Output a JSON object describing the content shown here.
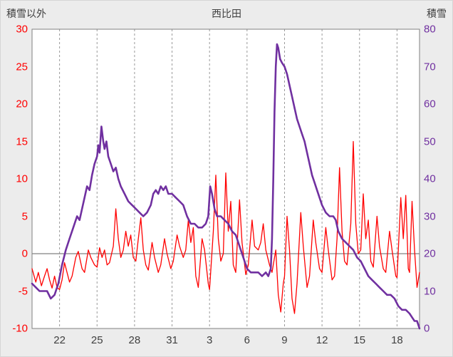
{
  "header": {
    "left_axis_title": "積雪以外",
    "title": "西比田",
    "right_axis_title": "積雪"
  },
  "colors": {
    "red": "#FF0000",
    "purple": "#7030A0",
    "grid": "#999999",
    "zero_line": "#808080",
    "plot_border": "#808080",
    "text": "#404040",
    "background": "#ECECEC",
    "plot_background": "#FFFFFF"
  },
  "chart_data": {
    "type": "line",
    "title": "西比田",
    "x_domain": [
      -1.2,
      29.8
    ],
    "x_ticks": [
      {
        "t": 1,
        "label": "22"
      },
      {
        "t": 4,
        "label": "25"
      },
      {
        "t": 7,
        "label": "28"
      },
      {
        "t": 10,
        "label": "31"
      },
      {
        "t": 13,
        "label": "3"
      },
      {
        "t": 16,
        "label": "6"
      },
      {
        "t": 19,
        "label": "9"
      },
      {
        "t": 22,
        "label": "12"
      },
      {
        "t": 25,
        "label": "15"
      },
      {
        "t": 28,
        "label": "18"
      }
    ],
    "left_axis": {
      "label": "積雪以外",
      "min": -10,
      "max": 30,
      "ticks": [
        30,
        25,
        20,
        15,
        10,
        5,
        0,
        -5,
        -10
      ],
      "color": "#FF0000"
    },
    "right_axis": {
      "label": "積雪",
      "min": 0,
      "max": 80,
      "ticks": [
        80,
        70,
        60,
        50,
        40,
        30,
        20,
        10,
        0
      ],
      "color": "#7030A0"
    },
    "grid": "vertical-dashed",
    "legend": "none",
    "series": [
      {
        "name": "積雪以外",
        "axis": "left",
        "color": "#FF0000",
        "width": 1.3,
        "points": [
          [
            -1.2,
            -2.0
          ],
          [
            -0.9,
            -3.8
          ],
          [
            -0.7,
            -2.5
          ],
          [
            -0.45,
            -4.3
          ],
          [
            -0.2,
            -3.0
          ],
          [
            0,
            -2.0
          ],
          [
            0.2,
            -3.5
          ],
          [
            0.4,
            -4.6
          ],
          [
            0.6,
            -3.0
          ],
          [
            0.8,
            -4.5
          ],
          [
            1.0,
            -4.8
          ],
          [
            1.2,
            -3.5
          ],
          [
            1.4,
            -1.2
          ],
          [
            1.6,
            -2.5
          ],
          [
            1.8,
            -3.8
          ],
          [
            2.0,
            -3.0
          ],
          [
            2.3,
            -0.5
          ],
          [
            2.5,
            0.3
          ],
          [
            2.8,
            -2.0
          ],
          [
            3.0,
            -2.5
          ],
          [
            3.3,
            0.5
          ],
          [
            3.5,
            -0.5
          ],
          [
            3.8,
            -1.5
          ],
          [
            4.0,
            -1.8
          ],
          [
            4.2,
            0.8
          ],
          [
            4.4,
            -0.5
          ],
          [
            4.6,
            0.5
          ],
          [
            4.8,
            -1.5
          ],
          [
            5.0,
            -1.2
          ],
          [
            5.3,
            1.0
          ],
          [
            5.5,
            6.0
          ],
          [
            5.7,
            2.0
          ],
          [
            5.9,
            -0.5
          ],
          [
            6.1,
            0.5
          ],
          [
            6.3,
            3.0
          ],
          [
            6.5,
            1.0
          ],
          [
            6.7,
            2.5
          ],
          [
            6.9,
            -0.5
          ],
          [
            7.1,
            -1.0
          ],
          [
            7.3,
            2.0
          ],
          [
            7.5,
            4.8
          ],
          [
            7.7,
            0.5
          ],
          [
            7.9,
            -1.5
          ],
          [
            8.1,
            -2.2
          ],
          [
            8.4,
            1.5
          ],
          [
            8.6,
            -0.5
          ],
          [
            8.9,
            -2.5
          ],
          [
            9.1,
            -1.5
          ],
          [
            9.4,
            2.0
          ],
          [
            9.6,
            0.0
          ],
          [
            9.9,
            -2.0
          ],
          [
            10.1,
            -1.0
          ],
          [
            10.4,
            2.5
          ],
          [
            10.6,
            1.0
          ],
          [
            10.9,
            -0.5
          ],
          [
            11.1,
            0.5
          ],
          [
            11.3,
            4.5
          ],
          [
            11.5,
            1.5
          ],
          [
            11.7,
            3.5
          ],
          [
            11.9,
            -3.0
          ],
          [
            12.1,
            -4.5
          ],
          [
            12.4,
            2.0
          ],
          [
            12.6,
            0.5
          ],
          [
            12.9,
            -4.0
          ],
          [
            13.0,
            -4.8
          ],
          [
            13.3,
            3.0
          ],
          [
            13.5,
            10.5
          ],
          [
            13.7,
            2.0
          ],
          [
            13.9,
            -1.0
          ],
          [
            14.1,
            0.0
          ],
          [
            14.3,
            10.8
          ],
          [
            14.5,
            3.0
          ],
          [
            14.7,
            7.0
          ],
          [
            14.9,
            -1.5
          ],
          [
            15.1,
            -2.5
          ],
          [
            15.4,
            7.2
          ],
          [
            15.6,
            1.5
          ],
          [
            15.9,
            -2.8
          ],
          [
            16.1,
            -1.5
          ],
          [
            16.4,
            4.5
          ],
          [
            16.6,
            1.0
          ],
          [
            16.9,
            0.5
          ],
          [
            17.1,
            1.5
          ],
          [
            17.3,
            4.0
          ],
          [
            17.5,
            0.5
          ],
          [
            17.8,
            -1.5
          ],
          [
            18.0,
            -2.5
          ],
          [
            18.3,
            0.5
          ],
          [
            18.5,
            -5.5
          ],
          [
            18.7,
            -7.8
          ],
          [
            18.9,
            -4.0
          ],
          [
            19.0,
            -3.0
          ],
          [
            19.2,
            5.0
          ],
          [
            19.4,
            0.5
          ],
          [
            19.6,
            -6.0
          ],
          [
            19.8,
            -8.0
          ],
          [
            20.0,
            -4.0
          ],
          [
            20.3,
            5.5
          ],
          [
            20.5,
            1.0
          ],
          [
            20.8,
            -4.5
          ],
          [
            21.0,
            -3.0
          ],
          [
            21.3,
            4.5
          ],
          [
            21.5,
            1.5
          ],
          [
            21.8,
            -2.0
          ],
          [
            22.0,
            -2.5
          ],
          [
            22.3,
            3.5
          ],
          [
            22.5,
            0.5
          ],
          [
            22.8,
            -3.5
          ],
          [
            23.0,
            -3.0
          ],
          [
            23.2,
            2.0
          ],
          [
            23.4,
            11.5
          ],
          [
            23.6,
            3.0
          ],
          [
            23.8,
            -1.0
          ],
          [
            24.0,
            -1.5
          ],
          [
            24.3,
            4.0
          ],
          [
            24.5,
            15.0
          ],
          [
            24.7,
            4.0
          ],
          [
            24.9,
            0.0
          ],
          [
            25.1,
            0.5
          ],
          [
            25.3,
            8.0
          ],
          [
            25.5,
            2.0
          ],
          [
            25.7,
            4.5
          ],
          [
            25.9,
            -1.0
          ],
          [
            26.1,
            -1.8
          ],
          [
            26.4,
            5.0
          ],
          [
            26.6,
            1.0
          ],
          [
            26.9,
            -2.0
          ],
          [
            27.1,
            -2.5
          ],
          [
            27.4,
            3.0
          ],
          [
            27.6,
            0.5
          ],
          [
            27.9,
            -3.0
          ],
          [
            28.0,
            -3.2
          ],
          [
            28.3,
            7.5
          ],
          [
            28.5,
            2.0
          ],
          [
            28.7,
            7.8
          ],
          [
            28.9,
            -2.0
          ],
          [
            29.0,
            -2.5
          ],
          [
            29.2,
            7.0
          ],
          [
            29.4,
            0.5
          ],
          [
            29.6,
            -4.5
          ],
          [
            29.8,
            -2.5
          ]
        ]
      },
      {
        "name": "積雪",
        "axis": "right",
        "color": "#7030A0",
        "width": 2.6,
        "points": [
          [
            -1.2,
            12
          ],
          [
            -0.9,
            11
          ],
          [
            -0.6,
            10
          ],
          [
            -0.3,
            10
          ],
          [
            0,
            10
          ],
          [
            0.3,
            8
          ],
          [
            0.6,
            9
          ],
          [
            0.9,
            12
          ],
          [
            1.2,
            17
          ],
          [
            1.5,
            21
          ],
          [
            1.8,
            24
          ],
          [
            2.1,
            27
          ],
          [
            2.4,
            30
          ],
          [
            2.6,
            29
          ],
          [
            2.8,
            32
          ],
          [
            3.0,
            35
          ],
          [
            3.2,
            38
          ],
          [
            3.4,
            37
          ],
          [
            3.6,
            41
          ],
          [
            3.8,
            44
          ],
          [
            4.0,
            46
          ],
          [
            4.1,
            49
          ],
          [
            4.2,
            47
          ],
          [
            4.35,
            54
          ],
          [
            4.5,
            50
          ],
          [
            4.6,
            48
          ],
          [
            4.75,
            50
          ],
          [
            4.9,
            46
          ],
          [
            5.1,
            44
          ],
          [
            5.3,
            42
          ],
          [
            5.5,
            43
          ],
          [
            5.7,
            40
          ],
          [
            5.9,
            38
          ],
          [
            6.2,
            36
          ],
          [
            6.5,
            34
          ],
          [
            6.8,
            33
          ],
          [
            7.1,
            32
          ],
          [
            7.4,
            31
          ],
          [
            7.7,
            30
          ],
          [
            8.0,
            31
          ],
          [
            8.3,
            33
          ],
          [
            8.5,
            36
          ],
          [
            8.7,
            37
          ],
          [
            8.9,
            36
          ],
          [
            9.1,
            38
          ],
          [
            9.3,
            37
          ],
          [
            9.5,
            38
          ],
          [
            9.7,
            36
          ],
          [
            10.0,
            36
          ],
          [
            10.3,
            35
          ],
          [
            10.6,
            34
          ],
          [
            10.9,
            33
          ],
          [
            11.2,
            30
          ],
          [
            11.5,
            28
          ],
          [
            11.8,
            28
          ],
          [
            12.1,
            27
          ],
          [
            12.4,
            27
          ],
          [
            12.7,
            28
          ],
          [
            12.9,
            30
          ],
          [
            13.05,
            38
          ],
          [
            13.2,
            36
          ],
          [
            13.4,
            32
          ],
          [
            13.6,
            30
          ],
          [
            13.9,
            30
          ],
          [
            14.2,
            29
          ],
          [
            14.5,
            28
          ],
          [
            14.8,
            26
          ],
          [
            15.1,
            25
          ],
          [
            15.4,
            22
          ],
          [
            15.7,
            19
          ],
          [
            16.0,
            16
          ],
          [
            16.3,
            15
          ],
          [
            16.6,
            15
          ],
          [
            16.9,
            15
          ],
          [
            17.2,
            14
          ],
          [
            17.5,
            15
          ],
          [
            17.7,
            14
          ],
          [
            17.9,
            16
          ],
          [
            18.0,
            24
          ],
          [
            18.1,
            40
          ],
          [
            18.2,
            58
          ],
          [
            18.3,
            70
          ],
          [
            18.4,
            76
          ],
          [
            18.5,
            75
          ],
          [
            18.65,
            72
          ],
          [
            18.8,
            71
          ],
          [
            19.0,
            70
          ],
          [
            19.2,
            68
          ],
          [
            19.4,
            65
          ],
          [
            19.6,
            62
          ],
          [
            19.8,
            59
          ],
          [
            20.0,
            56
          ],
          [
            20.2,
            54
          ],
          [
            20.4,
            52
          ],
          [
            20.6,
            50
          ],
          [
            20.8,
            47
          ],
          [
            21.0,
            44
          ],
          [
            21.2,
            41
          ],
          [
            21.4,
            39
          ],
          [
            21.6,
            37
          ],
          [
            21.8,
            35
          ],
          [
            22.0,
            33
          ],
          [
            22.3,
            31
          ],
          [
            22.6,
            30
          ],
          [
            22.9,
            30
          ],
          [
            23.1,
            29
          ],
          [
            23.3,
            26
          ],
          [
            23.6,
            24
          ],
          [
            23.9,
            23
          ],
          [
            24.2,
            22
          ],
          [
            24.5,
            21
          ],
          [
            24.8,
            19
          ],
          [
            25.1,
            18
          ],
          [
            25.4,
            16
          ],
          [
            25.7,
            14
          ],
          [
            26.0,
            13
          ],
          [
            26.3,
            12
          ],
          [
            26.6,
            11
          ],
          [
            26.9,
            10
          ],
          [
            27.2,
            9
          ],
          [
            27.5,
            9
          ],
          [
            27.8,
            8
          ],
          [
            28.1,
            6
          ],
          [
            28.4,
            5
          ],
          [
            28.7,
            5
          ],
          [
            29.0,
            4
          ],
          [
            29.2,
            3
          ],
          [
            29.4,
            2
          ],
          [
            29.6,
            2
          ],
          [
            29.8,
            0
          ]
        ]
      }
    ]
  }
}
